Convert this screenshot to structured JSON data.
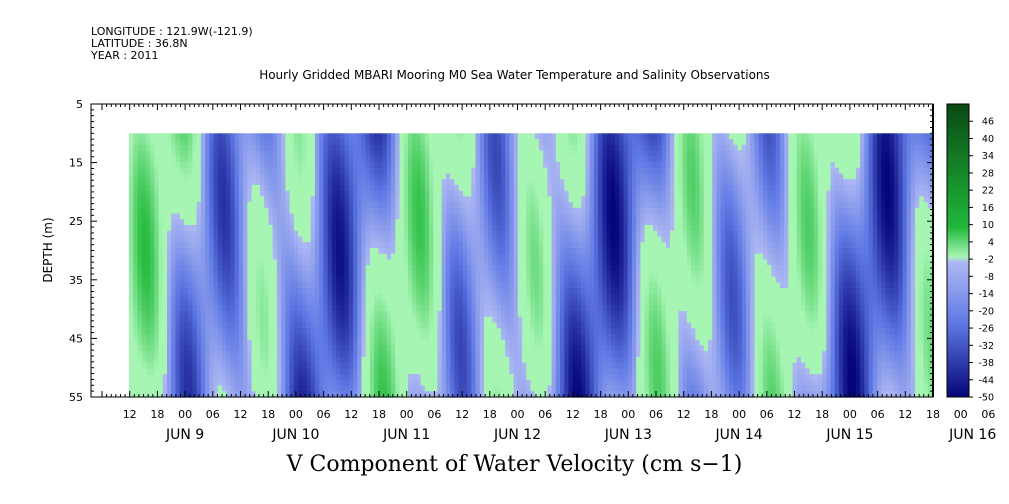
{
  "header": {
    "longitude": "LONGITUDE : 121.9W(-121.9)",
    "latitude": "LATITUDE : 36.8N",
    "year": "YEAR : 2011"
  },
  "chart_data": {
    "type": "heatmap",
    "title": "Hourly Gridded MBARI Mooring M0 Sea Water Temperature and Salinity Observations",
    "xlabel": "V Component of Water Velocity (cm s−1)",
    "ylabel": "DEPTH (m)",
    "ylim": [
      5,
      55
    ],
    "y_reversed": true,
    "y_ticks": [
      5,
      15,
      25,
      35,
      45,
      55
    ],
    "x_axis": "time (hours)",
    "x_hour_labels": [
      "12",
      "18",
      "00",
      "06",
      "12",
      "18",
      "00",
      "06",
      "12",
      "18",
      "00",
      "06",
      "12",
      "18",
      "00",
      "06",
      "12",
      "18",
      "00",
      "06",
      "12",
      "18",
      "00",
      "06",
      "12",
      "18",
      "00",
      "06",
      "12",
      "18",
      "00",
      "06"
    ],
    "x_day_labels": [
      "JUN  9",
      "JUN 10",
      "JUN 11",
      "JUN 12",
      "JUN 13",
      "JUN 14",
      "JUN 15",
      "JUN 16"
    ],
    "data_depth_range": [
      10,
      55
    ],
    "colorbar": {
      "labels": [
        "46",
        "40",
        "34",
        "28",
        "22",
        "16",
        "10",
        "4",
        "-2",
        "-8",
        "-14",
        "-20",
        "-26",
        "-32",
        "-38",
        "-44",
        "-50"
      ],
      "range": [
        -50,
        52
      ]
    },
    "colors": {
      "positive_dark": "#0a4a14",
      "positive_mid": "#1fb83a",
      "positive_light": "#a6f5b3",
      "negative_light": "#adb8f2",
      "negative_mid": "#5e78e4",
      "negative_dark": "#05057a"
    }
  }
}
